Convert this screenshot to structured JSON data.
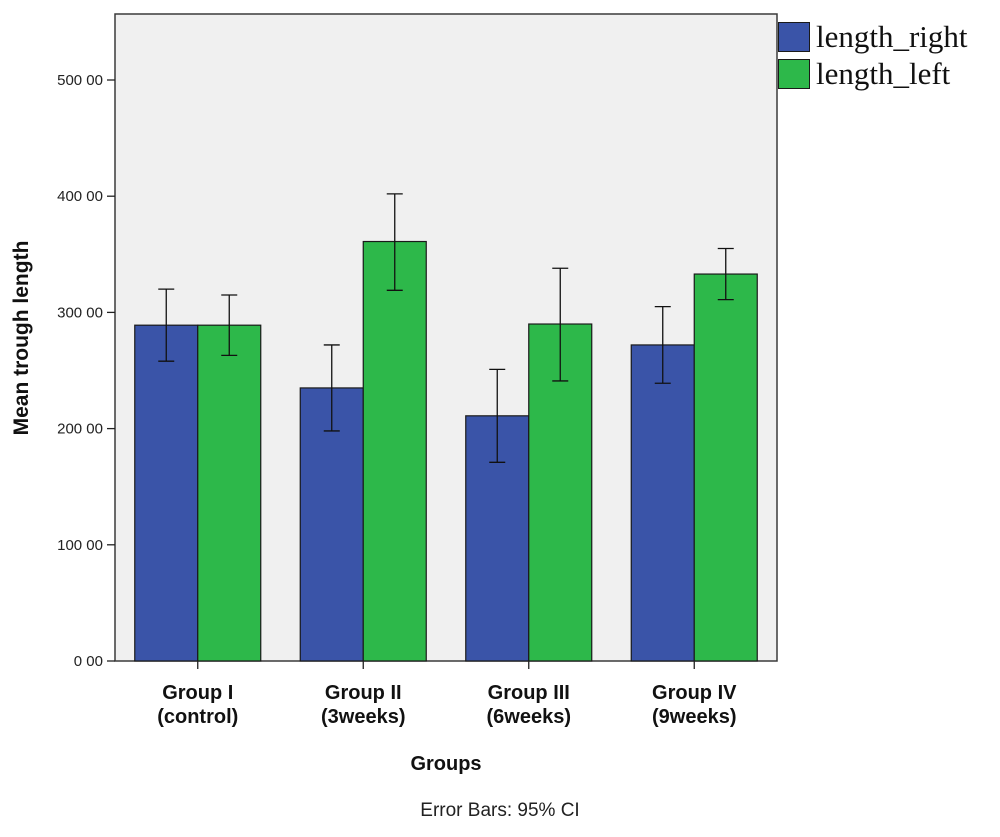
{
  "chart_data": {
    "type": "bar",
    "categories": [
      "Group I\n(control)",
      "Group II\n(3weeks)",
      "Group III\n(6weeks)",
      "Group IV\n(9weeks)"
    ],
    "series": [
      {
        "name": "length_right",
        "color": "#3a54a8",
        "values": [
          289,
          235,
          211,
          272
        ],
        "ci_low": [
          258,
          198,
          171,
          239
        ],
        "ci_high": [
          320,
          272,
          251,
          305
        ]
      },
      {
        "name": "length_left",
        "color": "#2db84a",
        "values": [
          289,
          361,
          290,
          333
        ],
        "ci_low": [
          263,
          319,
          241,
          311
        ],
        "ci_high": [
          315,
          402,
          338,
          355
        ]
      }
    ],
    "xlabel": "Groups",
    "ylabel": "Mean trough length",
    "ylim": [
      0,
      550
    ],
    "yticks": [
      0,
      100,
      200,
      300,
      400,
      500
    ],
    "ytick_labels": [
      "0 00",
      "100 00",
      "200 00",
      "300 00",
      "400 00",
      "500 00"
    ],
    "error_bar_note": "Error Bars: 95% CI",
    "legend_position": "top-right",
    "plot_background": "#f0f0f0",
    "grid": false
  }
}
